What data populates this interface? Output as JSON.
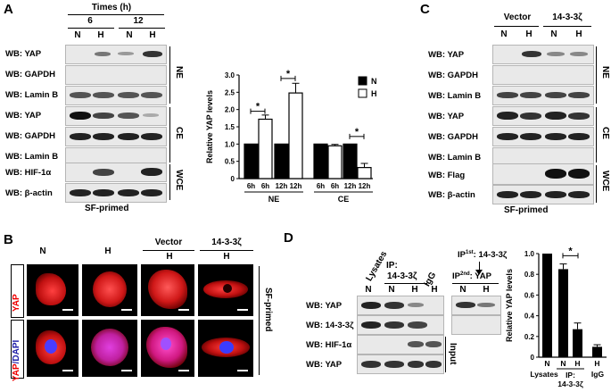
{
  "panels": {
    "A": "A",
    "B": "B",
    "C": "C",
    "D": "D"
  },
  "panelA": {
    "times_title": "Times (h)",
    "time6": "6",
    "time12": "12",
    "lanes": [
      "N",
      "H",
      "N",
      "H"
    ],
    "rows": [
      "WB: YAP",
      "WB: GAPDH",
      "WB: Lamin B",
      "WB: YAP",
      "WB: GAPDH",
      "WB: Lamin B",
      "WB: HIF-1α",
      "WB: β-actin"
    ],
    "groups": [
      "NE",
      "CE",
      "WCE"
    ],
    "footer": "SF-primed"
  },
  "chartA": {
    "chart_data": {
      "type": "bar",
      "ylabel": "Relative YAP levels",
      "ylim": [
        0,
        3
      ],
      "yticks": [
        "0",
        "0.5",
        "1.0",
        "1.5",
        "2.0",
        "2.5",
        "3.0"
      ],
      "xticks": [
        "6h",
        "6h",
        "12h",
        "12h",
        "6h",
        "6h",
        "12h",
        "12h"
      ],
      "groups": [
        "NE",
        "CE"
      ],
      "legend": [
        "N",
        "H"
      ],
      "legend_position": "top-right",
      "values": [
        1.0,
        1.72,
        1.0,
        2.48,
        1.0,
        0.95,
        1.0,
        0.32
      ],
      "errors": [
        0,
        0.12,
        0,
        0.28,
        0,
        0.04,
        0,
        0.12
      ],
      "fills": [
        "N",
        "H",
        "N",
        "H",
        "N",
        "H",
        "N",
        "H"
      ],
      "significance": [
        "*",
        "*",
        "*"
      ]
    }
  },
  "panelB": {
    "cols": [
      "N",
      "H",
      "Vector",
      "14-3-3ζ"
    ],
    "sub": [
      "",
      "",
      "H",
      "H"
    ],
    "row1": "YAP",
    "row2_a": "YAP",
    "row2_b": "/DAPI",
    "side": "SF-primed"
  },
  "panelC": {
    "vector": "Vector",
    "z": "14-3-3ζ",
    "lanes": [
      "N",
      "H",
      "N",
      "H"
    ],
    "rows": [
      "WB: YAP",
      "WB: GAPDH",
      "WB: Lamin B",
      "WB: YAP",
      "WB: GAPDH",
      "WB: Lamin B",
      "WB: Flag",
      "WB: β-actin"
    ],
    "groups": [
      "NE",
      "CE",
      "WCE"
    ],
    "footer": "SF-primed"
  },
  "panelD": {
    "lysates": "Lysates",
    "ip": "IP:",
    "ip_target": "14-3-3ζ",
    "igg": "IgG",
    "ip1": "IP",
    "ip1_sup": "1st",
    "ip1_target": ": 14-3-3ζ",
    "ip2": "IP",
    "ip2_sup": "2nd",
    "ip2_target": ": YAP",
    "lanes": [
      "N",
      "N",
      "H",
      "H",
      "N"
    ],
    "rows": [
      "WB: YAP",
      "WB: 14-3-3ζ",
      "WB: HIF-1α",
      "WB: YAP"
    ],
    "input": "Input"
  },
  "chartD": {
    "chart_data": {
      "type": "bar",
      "ylabel": "Relative YAP levels",
      "ylim": [
        0,
        1.0
      ],
      "yticks": [
        "0",
        "0.2",
        "0.4",
        "0.6",
        "0.8",
        "1.0"
      ],
      "categories_top": [
        "N",
        "N",
        "H",
        "H"
      ],
      "groups": [
        "Lysates",
        "IP: 14-3-3ζ",
        "IgG"
      ],
      "values": [
        1.0,
        0.85,
        0.27,
        0.1
      ],
      "errors": [
        0,
        0.05,
        0.06,
        0.02
      ],
      "significance": [
        "*"
      ]
    }
  }
}
